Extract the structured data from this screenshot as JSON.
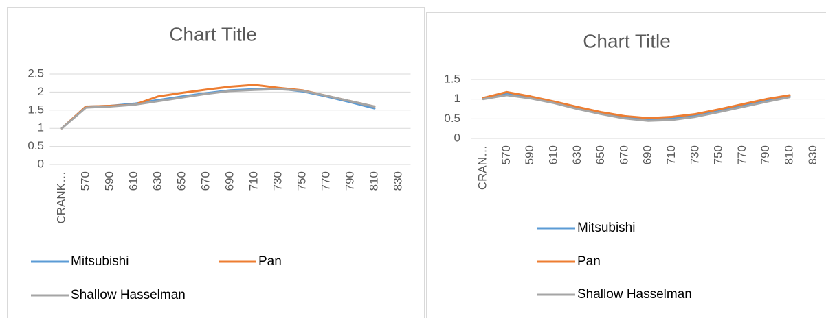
{
  "chart_data": [
    {
      "type": "line",
      "title": "Chart Title",
      "categories": [
        "CRANK…",
        "570",
        "590",
        "610",
        "630",
        "650",
        "670",
        "690",
        "710",
        "730",
        "750",
        "770",
        "790",
        "810",
        "830"
      ],
      "series": [
        {
          "name": "Mitsubishi",
          "color": "#5b9bd5",
          "values": [
            1.0,
            1.6,
            1.62,
            1.68,
            1.78,
            1.88,
            1.97,
            2.05,
            2.08,
            2.1,
            2.02,
            1.88,
            1.72,
            1.55,
            null
          ]
        },
        {
          "name": "Pan",
          "color": "#ed7d31",
          "values": [
            1.0,
            1.6,
            1.62,
            1.65,
            1.88,
            1.98,
            2.07,
            2.15,
            2.2,
            2.12,
            2.05,
            1.9,
            1.75,
            1.6,
            null
          ]
        },
        {
          "name": "Shallow Hasselman",
          "color": "#a5a5a5",
          "values": [
            1.0,
            1.57,
            1.6,
            1.65,
            1.75,
            1.85,
            1.95,
            2.03,
            2.06,
            2.08,
            2.04,
            1.9,
            1.75,
            1.6,
            null
          ]
        }
      ],
      "ylim": [
        0,
        2.5
      ],
      "yticks": [
        0,
        0.5,
        1,
        1.5,
        2,
        2.5
      ],
      "grid": true,
      "legend": "bottom"
    },
    {
      "type": "line",
      "title": "Chart Title",
      "categories": [
        "CRAN…",
        "570",
        "590",
        "610",
        "630",
        "650",
        "670",
        "690",
        "710",
        "730",
        "750",
        "770",
        "790",
        "810",
        "830"
      ],
      "series": [
        {
          "name": "Mitsubishi",
          "color": "#5b9bd5",
          "values": [
            1.03,
            1.15,
            1.05,
            0.92,
            0.78,
            0.65,
            0.55,
            0.48,
            0.5,
            0.58,
            0.7,
            0.83,
            0.97,
            1.07,
            null
          ]
        },
        {
          "name": "Pan",
          "color": "#ed7d31",
          "values": [
            1.03,
            1.18,
            1.07,
            0.94,
            0.8,
            0.67,
            0.57,
            0.52,
            0.55,
            0.62,
            0.74,
            0.87,
            1.0,
            1.1,
            null
          ]
        },
        {
          "name": "Shallow Hasselman",
          "color": "#a5a5a5",
          "values": [
            1.0,
            1.1,
            1.02,
            0.9,
            0.75,
            0.62,
            0.51,
            0.45,
            0.47,
            0.55,
            0.67,
            0.8,
            0.93,
            1.05,
            null
          ]
        }
      ],
      "ylim": [
        0,
        1.5
      ],
      "yticks": [
        0,
        0.5,
        1,
        1.5
      ],
      "grid": true,
      "legend": "bottom"
    }
  ]
}
